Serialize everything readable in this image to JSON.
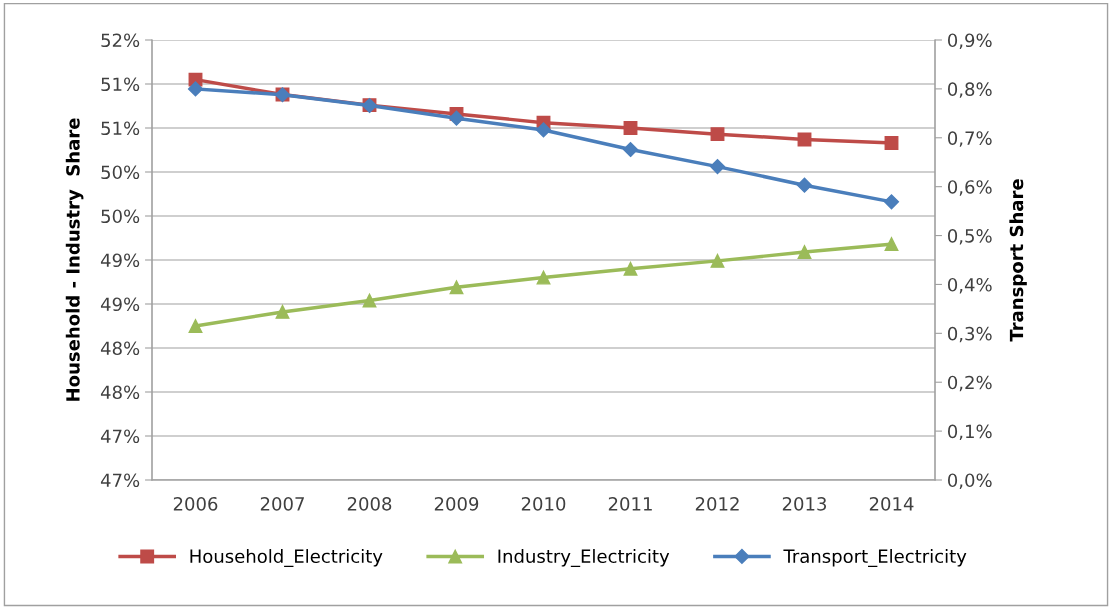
{
  "chart_data": {
    "type": "line",
    "xlabel": null,
    "ylabel": "Household - Industry  Share",
    "y2label": "Transport Share",
    "categories": [
      "2006",
      "2007",
      "2008",
      "2009",
      "2010",
      "2011",
      "2012",
      "2013",
      "2014"
    ],
    "series": [
      {
        "name": "Household_Electricity",
        "color": "#be4b48",
        "marker": "square",
        "values": [
          51.55,
          51.38,
          51.26,
          51.16,
          51.06,
          51.0,
          50.93,
          50.87,
          50.83
        ]
      },
      {
        "name": "Industry_Electricity",
        "color": "#9bbb59",
        "marker": "triangle",
        "values": [
          48.75,
          48.91,
          49.04,
          49.19,
          49.3,
          49.4,
          49.49,
          49.59,
          49.68
        ]
      },
      {
        "name": "Transport_Electricity",
        "color": "#4a7ebb",
        "marker": "diamond",
        "axis": "y2",
        "values": [
          0.8,
          0.788,
          0.766,
          0.74,
          0.716,
          0.676,
          0.641,
          0.603,
          0.569
        ]
      }
    ],
    "ylim": [
      47,
      52
    ],
    "yticks": [
      {
        "value": 47,
        "label": "47%"
      },
      {
        "value": 47.5,
        "label": "47%"
      },
      {
        "value": 48,
        "label": "48%"
      },
      {
        "value": 48.5,
        "label": "48%"
      },
      {
        "value": 49,
        "label": "49%"
      },
      {
        "value": 49.5,
        "label": "49%"
      },
      {
        "value": 50,
        "label": "50%"
      },
      {
        "value": 50.5,
        "label": "50%"
      },
      {
        "value": 51,
        "label": "51%"
      },
      {
        "value": 51.5,
        "label": "51%"
      },
      {
        "value": 52,
        "label": "52%"
      }
    ],
    "y2lim": [
      0,
      0.9
    ],
    "y2ticks": [
      {
        "value": 0,
        "label": "0,0%"
      },
      {
        "value": 0.1,
        "label": "0,1%"
      },
      {
        "value": 0.2,
        "label": "0,2%"
      },
      {
        "value": 0.3,
        "label": "0,3%"
      },
      {
        "value": 0.4,
        "label": "0,4%"
      },
      {
        "value": 0.5,
        "label": "0,5%"
      },
      {
        "value": 0.6,
        "label": "0,6%"
      },
      {
        "value": 0.7,
        "label": "0,7%"
      },
      {
        "value": 0.8,
        "label": "0,8%"
      },
      {
        "value": 0.9,
        "label": "0,9%"
      }
    ],
    "grid": "y",
    "legend": "bottom",
    "line_style": "solid"
  }
}
